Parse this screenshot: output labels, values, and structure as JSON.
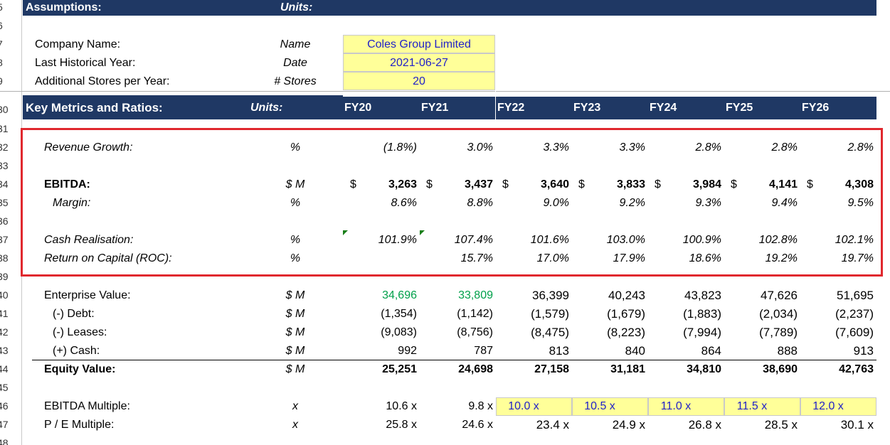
{
  "row_numbers": [
    "5",
    "6",
    "7",
    "8",
    "9",
    "30",
    "31",
    "32",
    "33",
    "34",
    "35",
    "36",
    "37",
    "38",
    "39",
    "40",
    "41",
    "42",
    "43",
    "44",
    "45",
    "46",
    "47",
    "48"
  ],
  "assumptions": {
    "title": "Assumptions:",
    "units_header": "Units:",
    "rows": [
      {
        "label": "Company Name:",
        "unit": "Name",
        "value": "Coles Group Limited"
      },
      {
        "label": "Last Historical Year:",
        "unit": "Date",
        "value": "2021-06-27"
      },
      {
        "label": "Additional Stores per Year:",
        "unit": "# Stores",
        "value": "20"
      }
    ]
  },
  "metrics_header": {
    "title": "Key Metrics and Ratios:",
    "units_header": "Units:",
    "years": [
      "FY20",
      "FY21",
      "FY22",
      "FY23",
      "FY24",
      "FY25",
      "FY26"
    ]
  },
  "rows": {
    "revenue_growth": {
      "label": "Revenue Growth:",
      "unit": "%",
      "values": [
        "(1.8%)",
        "3.0%",
        "3.3%",
        "3.3%",
        "2.8%",
        "2.8%",
        "2.8%"
      ]
    },
    "ebitda": {
      "label": "EBITDA:",
      "unit": "$ M",
      "currency": "$",
      "values": [
        "3,263",
        "3,437",
        "3,640",
        "3,833",
        "3,984",
        "4,141",
        "4,308"
      ]
    },
    "margin": {
      "label": "Margin:",
      "unit": "%",
      "values": [
        "8.6%",
        "8.8%",
        "9.0%",
        "9.2%",
        "9.3%",
        "9.4%",
        "9.5%"
      ]
    },
    "cash_realisation": {
      "label": "Cash Realisation:",
      "unit": "%",
      "values": [
        "101.9%",
        "107.4%",
        "101.6%",
        "103.0%",
        "100.9%",
        "102.8%",
        "102.1%"
      ]
    },
    "roc": {
      "label": "Return on Capital (ROC):",
      "unit": "%",
      "values": [
        "",
        "15.7%",
        "17.0%",
        "17.9%",
        "18.6%",
        "19.2%",
        "19.7%"
      ]
    },
    "enterprise_value": {
      "label": "Enterprise Value:",
      "unit": "$ M",
      "values": [
        "34,696",
        "33,809",
        "36,399",
        "40,243",
        "43,823",
        "47,626",
        "51,695"
      ]
    },
    "debt": {
      "label": "(-) Debt:",
      "unit": "$ M",
      "values": [
        "(1,354)",
        "(1,142)",
        "(1,579)",
        "(1,679)",
        "(1,883)",
        "(2,034)",
        "(2,237)"
      ]
    },
    "leases": {
      "label": "(-) Leases:",
      "unit": "$ M",
      "values": [
        "(9,083)",
        "(8,756)",
        "(8,475)",
        "(8,223)",
        "(7,994)",
        "(7,789)",
        "(7,609)"
      ]
    },
    "cash": {
      "label": "(+) Cash:",
      "unit": "$ M",
      "values": [
        "992",
        "787",
        "813",
        "840",
        "864",
        "888",
        "913"
      ]
    },
    "equity_value": {
      "label": "Equity Value:",
      "unit": "$ M",
      "values": [
        "25,251",
        "24,698",
        "27,158",
        "31,181",
        "34,810",
        "38,690",
        "42,763"
      ]
    },
    "ebitda_multiple": {
      "label": "EBITDA Multiple:",
      "unit": "x",
      "values": [
        "10.6 x",
        "9.8 x",
        "10.0 x",
        "10.5 x",
        "11.0 x",
        "11.5 x",
        "12.0 x"
      ]
    },
    "pe_multiple": {
      "label": "P / E Multiple:",
      "unit": "x",
      "values": [
        "25.8 x",
        "24.6 x",
        "23.4 x",
        "24.9 x",
        "26.8 x",
        "28.5 x",
        "30.1 x"
      ]
    }
  },
  "colors": {
    "header_band": "#1f3864",
    "input_fill": "#ffff99",
    "highlight_border": "#e0282e",
    "link_green": "#00a04a",
    "input_blue": "#1f1fc8"
  }
}
